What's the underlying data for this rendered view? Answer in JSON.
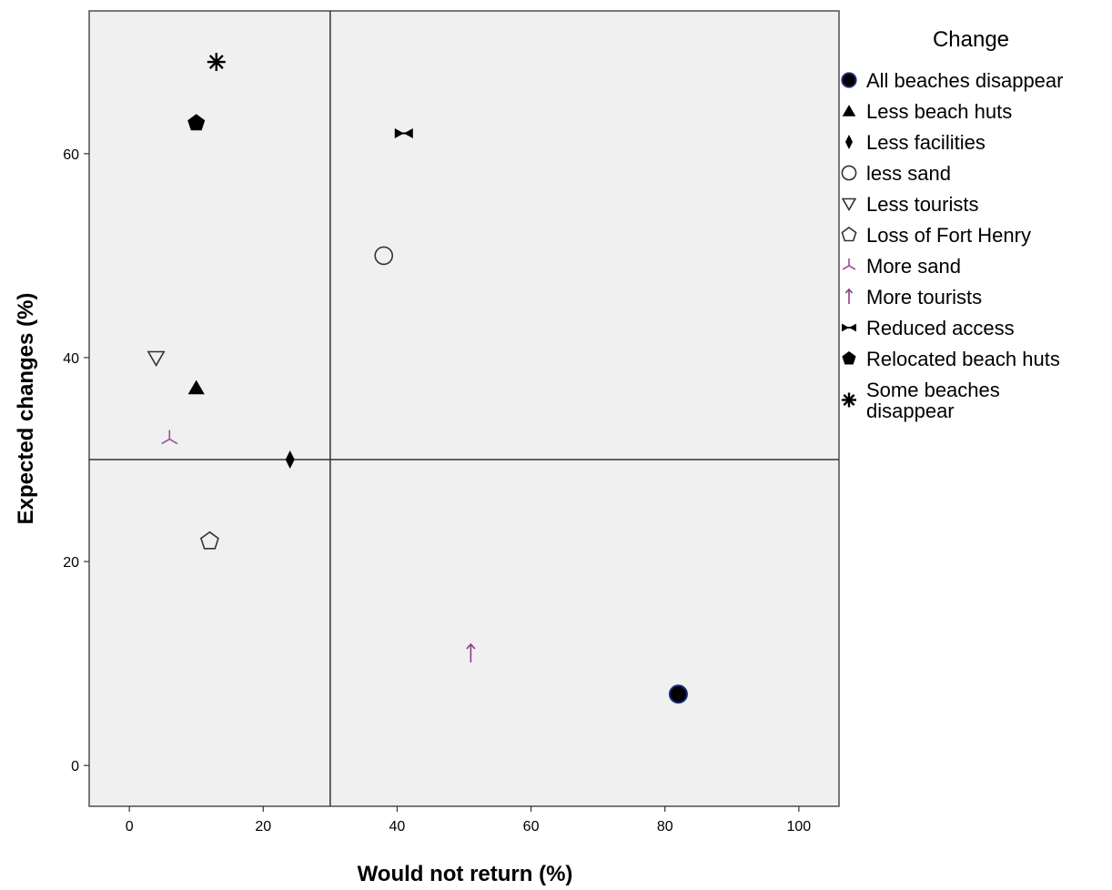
{
  "chart_data": {
    "type": "scatter",
    "xlabel": "Would not return (%)",
    "ylabel": "Expected changes (%)",
    "xlim": [
      -6,
      106
    ],
    "ylim": [
      -4,
      74
    ],
    "xticks": [
      0,
      20,
      40,
      60,
      80,
      100
    ],
    "yticks": [
      0,
      20,
      40,
      60
    ],
    "reference_lines": {
      "x": 30,
      "y": 30
    },
    "plot_background": "#f0f0f0",
    "legend": {
      "title": "Change",
      "placement": "right"
    },
    "series": [
      {
        "name": "All beaches disappear",
        "marker": "filled-circle",
        "color": "#000000",
        "edge": "#1f2a7a",
        "x": 82,
        "y": 7
      },
      {
        "name": "Less beach huts",
        "marker": "filled-triangle",
        "color": "#000000",
        "x": 10,
        "y": 37
      },
      {
        "name": "Less facilities",
        "marker": "filled-diamond",
        "color": "#000000",
        "x": 24,
        "y": 30
      },
      {
        "name": "less sand",
        "marker": "open-circle",
        "color": "#333333",
        "x": 38,
        "y": 50
      },
      {
        "name": "Less tourists",
        "marker": "open-triangle-down",
        "color": "#333333",
        "x": 4,
        "y": 40
      },
      {
        "name": "Loss of Fort Henry",
        "marker": "open-pentagon",
        "color": "#333333",
        "x": 12,
        "y": 22
      },
      {
        "name": "More sand",
        "marker": "tri-star",
        "color": "#9b4f9b",
        "x": 6,
        "y": 32
      },
      {
        "name": "More tourists",
        "marker": "up-arrow",
        "color": "#8a3d8a",
        "x": 51,
        "y": 11
      },
      {
        "name": "Reduced access",
        "marker": "bowtie",
        "color": "#000000",
        "x": 41,
        "y": 62
      },
      {
        "name": "Relocated beach huts",
        "marker": "filled-pentagon",
        "color": "#000000",
        "x": 10,
        "y": 63
      },
      {
        "name": "Some beaches\ndisappear",
        "marker": "asterisk",
        "color": "#000000",
        "x": 13,
        "y": 69
      }
    ]
  }
}
